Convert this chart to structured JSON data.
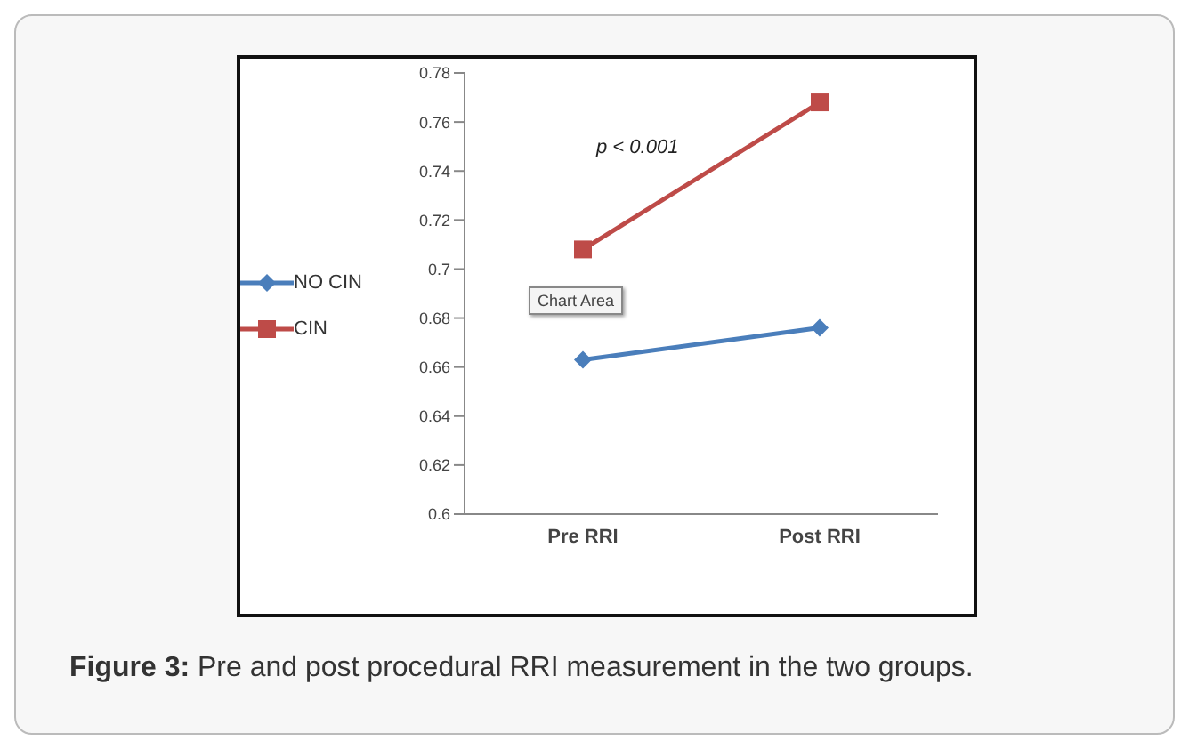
{
  "chart_data": {
    "type": "line",
    "categories": [
      "Pre RRI",
      "Post RRI"
    ],
    "series": [
      {
        "name": "NO CIN",
        "color": "#4a7ebb",
        "values": [
          0.663,
          0.676
        ],
        "marker": "diamond"
      },
      {
        "name": "CIN",
        "color": "#be4b48",
        "values": [
          0.708,
          0.768
        ],
        "marker": "square"
      }
    ],
    "ylim": [
      0.6,
      0.78
    ],
    "yticks": [
      0.6,
      0.62,
      0.64,
      0.66,
      0.68,
      0.7,
      0.72,
      0.74,
      0.76,
      0.78
    ],
    "grid": false,
    "legend": "left",
    "line_style": "solid",
    "annotations": [
      "p < 0.001",
      "Chart Area",
      "Figure 3: Pre and post procedural RRI measurement in the two groups."
    ]
  }
}
